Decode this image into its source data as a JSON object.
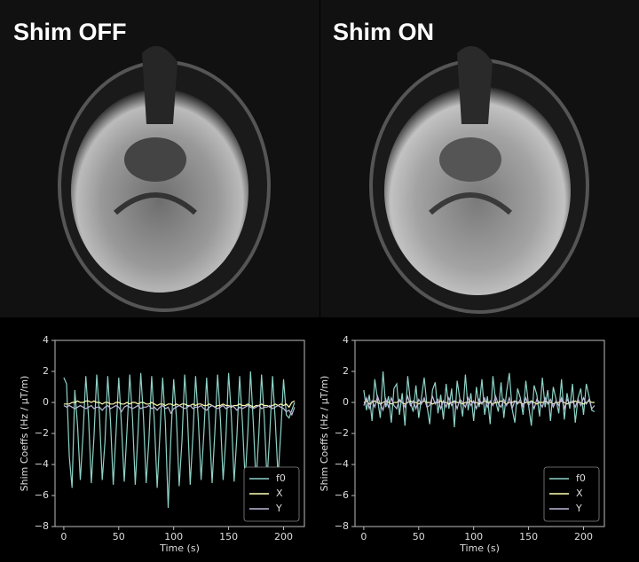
{
  "chart_data": [
    {
      "type": "line",
      "title": "Shim OFF",
      "xlabel": "Time (s)",
      "ylabel": "Shim Coeffs (Hz / μT/m)",
      "x": [
        0,
        2.5,
        5,
        7.5,
        10,
        12.5,
        15,
        17.5,
        20,
        22.5,
        25,
        27.5,
        30,
        32.5,
        35,
        37.5,
        40,
        42.5,
        45,
        47.5,
        50,
        52.5,
        55,
        57.5,
        60,
        62.5,
        65,
        67.5,
        70,
        72.5,
        75,
        77.5,
        80,
        82.5,
        85,
        87.5,
        90,
        92.5,
        95,
        97.5,
        100,
        102.5,
        105,
        107.5,
        110,
        112.5,
        115,
        117.5,
        120,
        122.5,
        125,
        127.5,
        130,
        132.5,
        135,
        137.5,
        140,
        142.5,
        145,
        147.5,
        150,
        152.5,
        155,
        157.5,
        160,
        162.5,
        165,
        167.5,
        170,
        172.5,
        175,
        177.5,
        180,
        182.5,
        185,
        187.5,
        190,
        192.5,
        195,
        197.5,
        200,
        202.5,
        205,
        207.5,
        210
      ],
      "series": [
        {
          "name": "f0",
          "color": "#8dd3c7",
          "values": [
            1.6,
            1.2,
            -3.5,
            -5.5,
            0.8,
            -1.5,
            -5.0,
            -2.0,
            1.7,
            -1.0,
            -5.2,
            -2.2,
            1.8,
            -0.8,
            -5.0,
            -2.5,
            1.7,
            -1.2,
            -5.3,
            -2.0,
            1.6,
            -1.5,
            -5.1,
            -1.8,
            1.8,
            -1.0,
            -5.3,
            -2.0,
            1.9,
            -0.9,
            -5.2,
            -2.4,
            1.7,
            -1.3,
            -5.5,
            -2.0,
            1.6,
            -1.4,
            -6.8,
            -2.2,
            1.5,
            -1.0,
            -5.4,
            -2.5,
            1.8,
            -0.8,
            -5.3,
            -2.1,
            1.7,
            -1.2,
            -5.0,
            -2.0,
            1.6,
            -1.5,
            -5.2,
            -1.9,
            1.8,
            -1.0,
            -5.0,
            -2.3,
            1.9,
            -0.9,
            -5.1,
            -2.2,
            1.7,
            -1.2,
            -5.0,
            -2.0,
            2.0,
            -1.3,
            -5.2,
            -2.1,
            1.8,
            -1.0,
            -5.0,
            -2.0,
            1.7,
            -1.2,
            -4.8,
            -1.9,
            1.5,
            -0.8,
            -1.0,
            -0.5,
            0
          ]
        },
        {
          "name": "X",
          "color": "#ffffb3",
          "values": [
            -0.1,
            -0.1,
            -0.1,
            0,
            0,
            0.1,
            0,
            0,
            0.1,
            0.1,
            0,
            0.1,
            0,
            0,
            -0.1,
            0,
            0,
            -0.1,
            -0.1,
            0,
            0,
            -0.1,
            -0.1,
            0,
            -0.1,
            0,
            0,
            -0.1,
            0,
            0,
            -0.1,
            -0.1,
            0,
            -0.1,
            -0.2,
            -0.1,
            -0.1,
            -0.2,
            -0.1,
            -0.1,
            -0.2,
            -0.1,
            -0.2,
            -0.1,
            -0.1,
            -0.2,
            -0.2,
            -0.1,
            -0.2,
            -0.1,
            -0.1,
            -0.2,
            -0.2,
            -0.1,
            -0.2,
            -0.3,
            -0.2,
            -0.2,
            -0.1,
            -0.2,
            -0.2,
            -0.3,
            -0.2,
            -0.2,
            -0.1,
            -0.2,
            -0.2,
            -0.1,
            -0.2,
            -0.3,
            -0.2,
            -0.2,
            -0.1,
            -0.2,
            -0.2,
            -0.3,
            -0.2,
            -0.1,
            -0.2,
            -0.1,
            -0.2,
            -0.1,
            -0.3,
            0,
            0.1
          ]
        },
        {
          "name": "Y",
          "color": "#bebada",
          "values": [
            -0.2,
            -0.3,
            -0.2,
            -0.3,
            -0.4,
            -0.3,
            -0.2,
            -0.3,
            -0.4,
            -0.3,
            -0.2,
            -0.4,
            -0.3,
            -0.3,
            -0.5,
            -0.3,
            -0.2,
            -0.4,
            -0.3,
            -0.2,
            -0.3,
            -0.6,
            -0.3,
            -0.2,
            -0.3,
            -0.4,
            -0.3,
            -0.2,
            -0.4,
            -0.3,
            -0.3,
            -0.2,
            -0.4,
            -0.3,
            -0.5,
            -0.3,
            -0.2,
            -0.4,
            -0.3,
            -0.7,
            -0.4,
            -0.3,
            -0.2,
            -0.3,
            -0.4,
            -0.3,
            -0.2,
            -0.4,
            -0.3,
            -0.3,
            -0.2,
            -0.4,
            -0.5,
            -0.3,
            -0.2,
            -0.3,
            -0.4,
            -0.3,
            -0.2,
            -0.4,
            -0.3,
            -0.2,
            -0.3,
            -0.5,
            -0.3,
            -0.4,
            -0.3,
            -0.2,
            -0.3,
            -0.4,
            -0.3,
            -0.2,
            -0.4,
            -0.3,
            -0.3,
            -0.2,
            -0.4,
            -0.3,
            -0.2,
            -0.3,
            -0.4,
            -0.6,
            -0.5,
            -0.8,
            -0.3
          ]
        }
      ],
      "xlim": [
        -8,
        219
      ],
      "ylim": [
        -8,
        4
      ],
      "xticks": [
        0,
        50,
        100,
        150,
        200
      ],
      "yticks": [
        {
          "value": -8,
          "label": "−8"
        },
        {
          "value": -6,
          "label": "−6"
        },
        {
          "value": -4,
          "label": "−4"
        },
        {
          "value": -2,
          "label": "−2"
        },
        0,
        2,
        4
      ],
      "legend": "lower right"
    },
    {
      "type": "line",
      "title": "Shim ON",
      "xlabel": "Time (s)",
      "ylabel": "Shim Coeffs (Hz / μT/m)",
      "x": [
        0,
        2.5,
        5,
        7.5,
        10,
        12.5,
        15,
        17.5,
        20,
        22.5,
        25,
        27.5,
        30,
        32.5,
        35,
        37.5,
        40,
        42.5,
        45,
        47.5,
        50,
        52.5,
        55,
        57.5,
        60,
        62.5,
        65,
        67.5,
        70,
        72.5,
        75,
        77.5,
        80,
        82.5,
        85,
        87.5,
        90,
        92.5,
        95,
        97.5,
        100,
        102.5,
        105,
        107.5,
        110,
        112.5,
        115,
        117.5,
        120,
        122.5,
        125,
        127.5,
        130,
        132.5,
        135,
        137.5,
        140,
        142.5,
        145,
        147.5,
        150,
        152.5,
        155,
        157.5,
        160,
        162.5,
        165,
        167.5,
        170,
        172.5,
        175,
        177.5,
        180,
        182.5,
        185,
        187.5,
        190,
        192.5,
        195,
        197.5,
        200,
        202.5,
        205,
        207.5,
        210
      ],
      "series": [
        {
          "name": "f0",
          "color": "#8dd3c7",
          "values": [
            0.8,
            -0.5,
            0.5,
            -1.2,
            1.5,
            0.2,
            -1.0,
            2.0,
            -0.3,
            0.4,
            -1.3,
            0.9,
            1.2,
            -0.8,
            0.6,
            -1.5,
            1.7,
            0.0,
            -0.6,
            1.1,
            -1.0,
            0.3,
            1.6,
            -0.2,
            -1.4,
            0.8,
            1.3,
            -0.7,
            0.5,
            -1.1,
            1.2,
            -0.4,
            0.9,
            -1.6,
            1.4,
            0.2,
            -0.9,
            1.8,
            -0.5,
            0.6,
            -1.2,
            1.0,
            -0.3,
            1.5,
            -0.8,
            0.4,
            -1.4,
            1.7,
            0.1,
            -0.6,
            1.3,
            -1.0,
            0.7,
            1.9,
            -0.4,
            -1.3,
            0.9,
            0.3,
            -0.8,
            1.4,
            -0.2,
            -1.5,
            1.1,
            0.5,
            -0.9,
            1.6,
            -0.3,
            0.8,
            -1.2,
            1.0,
            0.2,
            -0.7,
            1.5,
            -1.1,
            0.6,
            -0.4,
            1.2,
            -1.3,
            0.3,
            0.9,
            -0.8,
            1.2,
            0.4,
            -0.5,
            -0.6
          ]
        },
        {
          "name": "X",
          "color": "#ffffb3",
          "values": [
            0,
            0.1,
            -0.1,
            0,
            0.1,
            0,
            -0.1,
            0,
            0.1,
            0,
            -0.1,
            0,
            0,
            0.1,
            0,
            -0.1,
            0,
            0.1,
            0,
            0,
            -0.1,
            0,
            0.1,
            0,
            0,
            -0.1,
            0,
            0,
            0.1,
            0,
            0,
            -0.1,
            0,
            0.1,
            0,
            0,
            -0.1,
            0,
            0,
            0.1,
            0,
            0,
            -0.1,
            0,
            0.1,
            0,
            0,
            -0.1,
            0,
            0,
            0.1,
            0,
            -0.1,
            0,
            0,
            0.1,
            0,
            0,
            -0.1,
            0,
            0,
            0.1,
            0,
            -0.1,
            0,
            0,
            0.1,
            0,
            0,
            -0.1,
            0,
            0,
            0.1,
            0,
            -0.1,
            0,
            0,
            0.1,
            0,
            0,
            -0.1,
            0,
            0.1,
            0,
            0
          ]
        },
        {
          "name": "Y",
          "color": "#bebada",
          "values": [
            -0.2,
            0.3,
            -0.4,
            0.1,
            -0.3,
            0.4,
            -0.1,
            -0.5,
            0.2,
            -0.3,
            0.3,
            -0.2,
            -0.4,
            0.2,
            0.0,
            -0.3,
            0.4,
            -0.2,
            0.1,
            -0.4,
            0.2,
            -0.1,
            0.3,
            -0.3,
            -0.2,
            0.4,
            -0.1,
            0.2,
            -0.4,
            0.1,
            -0.3,
            0.3,
            -0.2,
            0.1,
            -0.4,
            0.2,
            0.0,
            -0.3,
            0.3,
            -0.2,
            0.1,
            -0.4,
            0.2,
            -0.1,
            0.3,
            -0.3,
            0.1,
            -0.2,
            0.4,
            -0.1,
            -0.3,
            0.2,
            -0.2,
            0.3,
            -0.4,
            0.1,
            -0.1,
            0.2,
            -0.3,
            0.3,
            -0.2,
            0.1,
            -0.4,
            0.2,
            0.0,
            -0.3,
            0.3,
            -0.1,
            0.2,
            -0.3,
            0.1,
            -0.2,
            0.3,
            -0.4,
            0.2,
            -0.1,
            0.1,
            -0.3,
            0.2,
            -0.2,
            0.3,
            -0.1,
            0.2,
            -0.4,
            -0.2
          ]
        }
      ],
      "xlim": [
        -8,
        219
      ],
      "ylim": [
        -8,
        4
      ],
      "xticks": [
        0,
        50,
        100,
        150,
        200
      ],
      "yticks": [
        {
          "value": -8,
          "label": "−8"
        },
        {
          "value": -6,
          "label": "−6"
        },
        {
          "value": -4,
          "label": "−4"
        },
        {
          "value": -2,
          "label": "−2"
        },
        0,
        2,
        4
      ],
      "legend": "lower right"
    }
  ]
}
